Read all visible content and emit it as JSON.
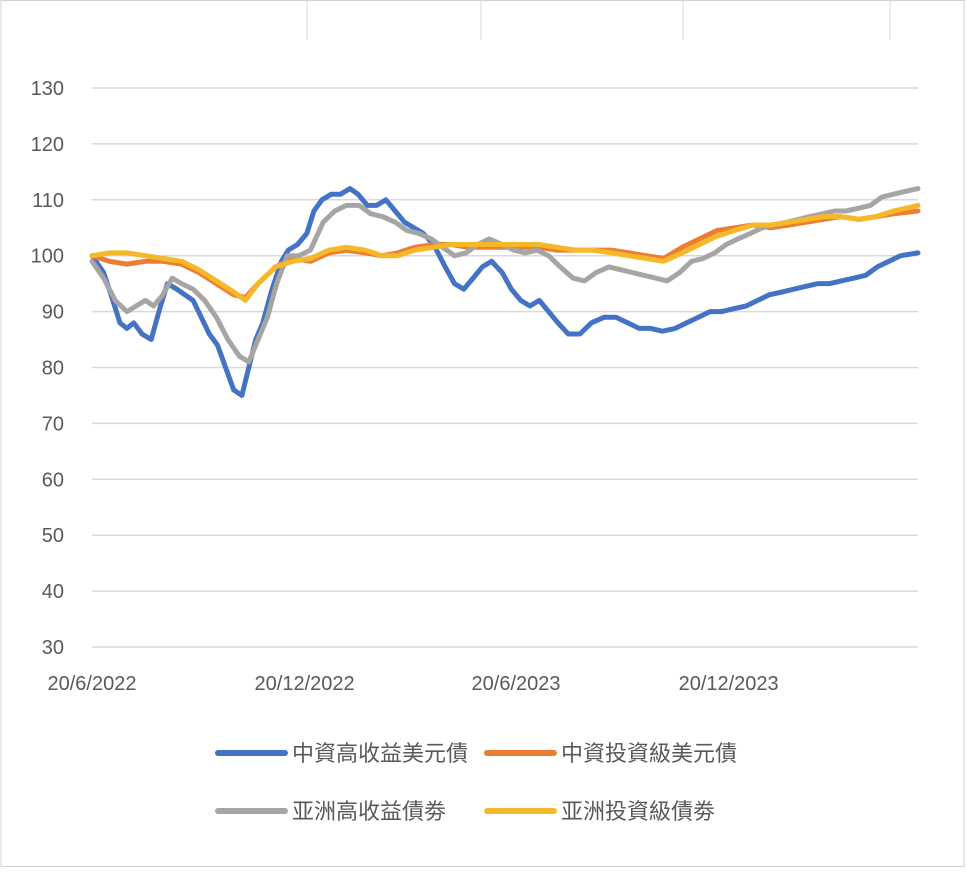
{
  "chart_data": {
    "type": "line",
    "title": "",
    "xlabel": "",
    "ylabel": "",
    "x_ticks": [
      "20/6/2022",
      "20/12/2022",
      "20/6/2023",
      "20/12/2023"
    ],
    "x_range": [
      "2022-06-20",
      "2024-05-31"
    ],
    "y_ticks": [
      130,
      120,
      110,
      100,
      90,
      80,
      70,
      60,
      50,
      40,
      30
    ],
    "ylim": [
      30,
      130
    ],
    "grid": true,
    "legend_position": "bottom",
    "series": [
      {
        "name": "中資高收益美元債",
        "color": "#4472C4",
        "points": [
          [
            "2022-06-20",
            100
          ],
          [
            "2022-06-30",
            97
          ],
          [
            "2022-07-08",
            92
          ],
          [
            "2022-07-14",
            88
          ],
          [
            "2022-07-20",
            87
          ],
          [
            "2022-07-26",
            88
          ],
          [
            "2022-08-02",
            86
          ],
          [
            "2022-08-10",
            85
          ],
          [
            "2022-08-18",
            91
          ],
          [
            "2022-08-24",
            95
          ],
          [
            "2022-09-01",
            94
          ],
          [
            "2022-09-08",
            93
          ],
          [
            "2022-09-15",
            92
          ],
          [
            "2022-09-22",
            89
          ],
          [
            "2022-09-29",
            86
          ],
          [
            "2022-10-06",
            84
          ],
          [
            "2022-10-13",
            80
          ],
          [
            "2022-10-20",
            76
          ],
          [
            "2022-10-27",
            75
          ],
          [
            "2022-11-02",
            80
          ],
          [
            "2022-11-08",
            85
          ],
          [
            "2022-11-14",
            88
          ],
          [
            "2022-11-22",
            94
          ],
          [
            "2022-11-30",
            99
          ],
          [
            "2022-12-06",
            101
          ],
          [
            "2022-12-14",
            102
          ],
          [
            "2022-12-22",
            104
          ],
          [
            "2022-12-28",
            108
          ],
          [
            "2023-01-04",
            110
          ],
          [
            "2023-01-12",
            111
          ],
          [
            "2023-01-20",
            111
          ],
          [
            "2023-01-28",
            112
          ],
          [
            "2023-02-04",
            111
          ],
          [
            "2023-02-12",
            109
          ],
          [
            "2023-02-20",
            109
          ],
          [
            "2023-02-28",
            110
          ],
          [
            "2023-03-08",
            108
          ],
          [
            "2023-03-16",
            106
          ],
          [
            "2023-03-24",
            105
          ],
          [
            "2023-04-01",
            104
          ],
          [
            "2023-04-10",
            102
          ],
          [
            "2023-04-20",
            98
          ],
          [
            "2023-04-28",
            95
          ],
          [
            "2023-05-06",
            94
          ],
          [
            "2023-05-14",
            96
          ],
          [
            "2023-05-22",
            98
          ],
          [
            "2023-05-30",
            99
          ],
          [
            "2023-06-08",
            97
          ],
          [
            "2023-06-16",
            94
          ],
          [
            "2023-06-24",
            92
          ],
          [
            "2023-07-02",
            91
          ],
          [
            "2023-07-10",
            92
          ],
          [
            "2023-07-18",
            90
          ],
          [
            "2023-07-26",
            88
          ],
          [
            "2023-08-04",
            86
          ],
          [
            "2023-08-14",
            86
          ],
          [
            "2023-08-24",
            88
          ],
          [
            "2023-09-04",
            89
          ],
          [
            "2023-09-14",
            89
          ],
          [
            "2023-09-24",
            88
          ],
          [
            "2023-10-04",
            87
          ],
          [
            "2023-10-14",
            87
          ],
          [
            "2023-10-24",
            86.5
          ],
          [
            "2023-11-04",
            87
          ],
          [
            "2023-11-14",
            88
          ],
          [
            "2023-11-24",
            89
          ],
          [
            "2023-12-04",
            90
          ],
          [
            "2023-12-14",
            90
          ],
          [
            "2023-12-24",
            90.5
          ],
          [
            "2024-01-04",
            91
          ],
          [
            "2024-01-14",
            92
          ],
          [
            "2024-01-24",
            93
          ],
          [
            "2024-02-04",
            93.5
          ],
          [
            "2024-02-14",
            94
          ],
          [
            "2024-02-24",
            94.5
          ],
          [
            "2024-03-06",
            95
          ],
          [
            "2024-03-16",
            95
          ],
          [
            "2024-03-26",
            95.5
          ],
          [
            "2024-04-06",
            96
          ],
          [
            "2024-04-16",
            96.5
          ],
          [
            "2024-04-26",
            98
          ],
          [
            "2024-05-06",
            99
          ],
          [
            "2024-05-16",
            100
          ],
          [
            "2024-05-31",
            100.5
          ]
        ]
      },
      {
        "name": "中資投資級美元債",
        "color": "#ED7D31",
        "points": [
          [
            "2022-06-20",
            100
          ],
          [
            "2022-07-05",
            99
          ],
          [
            "2022-07-20",
            98.5
          ],
          [
            "2022-08-05",
            99
          ],
          [
            "2022-08-20",
            99
          ],
          [
            "2022-09-05",
            98.5
          ],
          [
            "2022-09-20",
            97
          ],
          [
            "2022-10-05",
            95
          ],
          [
            "2022-10-20",
            93
          ],
          [
            "2022-10-30",
            92.5
          ],
          [
            "2022-11-10",
            95
          ],
          [
            "2022-11-25",
            98
          ],
          [
            "2022-12-10",
            99.5
          ],
          [
            "2022-12-25",
            99
          ],
          [
            "2023-01-10",
            100.5
          ],
          [
            "2023-01-25",
            101
          ],
          [
            "2023-02-10",
            100.5
          ],
          [
            "2023-02-25",
            100
          ],
          [
            "2023-03-10",
            100.5
          ],
          [
            "2023-03-25",
            101.5
          ],
          [
            "2023-04-10",
            102
          ],
          [
            "2023-04-25",
            102
          ],
          [
            "2023-05-10",
            101.5
          ],
          [
            "2023-05-25",
            101.5
          ],
          [
            "2023-06-10",
            101.5
          ],
          [
            "2023-06-25",
            101.5
          ],
          [
            "2023-07-10",
            101.5
          ],
          [
            "2023-07-25",
            101
          ],
          [
            "2023-08-10",
            101
          ],
          [
            "2023-08-25",
            101
          ],
          [
            "2023-09-10",
            101
          ],
          [
            "2023-09-25",
            100.5
          ],
          [
            "2023-10-10",
            100
          ],
          [
            "2023-10-25",
            99.5
          ],
          [
            "2023-11-10",
            101.5
          ],
          [
            "2023-11-25",
            103
          ],
          [
            "2023-12-10",
            104.5
          ],
          [
            "2023-12-25",
            105
          ],
          [
            "2024-01-10",
            105.5
          ],
          [
            "2024-01-25",
            105
          ],
          [
            "2024-02-10",
            105.5
          ],
          [
            "2024-02-25",
            106
          ],
          [
            "2024-03-10",
            106.5
          ],
          [
            "2024-03-25",
            107
          ],
          [
            "2024-04-10",
            106.5
          ],
          [
            "2024-04-25",
            107
          ],
          [
            "2024-05-10",
            107.5
          ],
          [
            "2024-05-31",
            108
          ]
        ]
      },
      {
        "name": "亚洲高收益債劵",
        "color": "#A5A5A5",
        "points": [
          [
            "2022-06-20",
            99
          ],
          [
            "2022-06-30",
            96
          ],
          [
            "2022-07-10",
            92
          ],
          [
            "2022-07-20",
            90
          ],
          [
            "2022-07-28",
            91
          ],
          [
            "2022-08-05",
            92
          ],
          [
            "2022-08-12",
            91
          ],
          [
            "2022-08-20",
            93
          ],
          [
            "2022-08-28",
            96
          ],
          [
            "2022-09-05",
            95
          ],
          [
            "2022-09-15",
            94
          ],
          [
            "2022-09-25",
            92
          ],
          [
            "2022-10-05",
            89
          ],
          [
            "2022-10-15",
            85
          ],
          [
            "2022-10-25",
            82
          ],
          [
            "2022-11-02",
            81
          ],
          [
            "2022-11-10",
            85
          ],
          [
            "2022-11-18",
            89
          ],
          [
            "2022-11-26",
            95
          ],
          [
            "2022-12-05",
            100
          ],
          [
            "2022-12-15",
            100
          ],
          [
            "2022-12-25",
            101
          ],
          [
            "2023-01-05",
            106
          ],
          [
            "2023-01-15",
            108
          ],
          [
            "2023-01-25",
            109
          ],
          [
            "2023-02-05",
            109
          ],
          [
            "2023-02-15",
            107.5
          ],
          [
            "2023-02-25",
            107
          ],
          [
            "2023-03-08",
            106
          ],
          [
            "2023-03-18",
            104.5
          ],
          [
            "2023-03-28",
            104
          ],
          [
            "2023-04-08",
            103
          ],
          [
            "2023-04-18",
            101.5
          ],
          [
            "2023-04-28",
            100
          ],
          [
            "2023-05-08",
            100.5
          ],
          [
            "2023-05-18",
            102
          ],
          [
            "2023-05-28",
            103
          ],
          [
            "2023-06-08",
            102
          ],
          [
            "2023-06-18",
            101
          ],
          [
            "2023-06-28",
            100.5
          ],
          [
            "2023-07-08",
            101
          ],
          [
            "2023-07-18",
            100
          ],
          [
            "2023-07-28",
            98
          ],
          [
            "2023-08-08",
            96
          ],
          [
            "2023-08-18",
            95.5
          ],
          [
            "2023-08-28",
            97
          ],
          [
            "2023-09-08",
            98
          ],
          [
            "2023-09-18",
            97.5
          ],
          [
            "2023-09-28",
            97
          ],
          [
            "2023-10-08",
            96.5
          ],
          [
            "2023-10-18",
            96
          ],
          [
            "2023-10-28",
            95.5
          ],
          [
            "2023-11-08",
            97
          ],
          [
            "2023-11-18",
            99
          ],
          [
            "2023-11-28",
            99.5
          ],
          [
            "2023-12-08",
            100.5
          ],
          [
            "2023-12-18",
            102
          ],
          [
            "2023-12-28",
            103
          ],
          [
            "2024-01-08",
            104
          ],
          [
            "2024-01-18",
            105
          ],
          [
            "2024-01-28",
            105.5
          ],
          [
            "2024-02-08",
            106
          ],
          [
            "2024-02-18",
            106.5
          ],
          [
            "2024-02-28",
            107
          ],
          [
            "2024-03-10",
            107.5
          ],
          [
            "2024-03-20",
            108
          ],
          [
            "2024-03-30",
            108
          ],
          [
            "2024-04-10",
            108.5
          ],
          [
            "2024-04-20",
            109
          ],
          [
            "2024-04-30",
            110.5
          ],
          [
            "2024-05-10",
            111
          ],
          [
            "2024-05-20",
            111.5
          ],
          [
            "2024-05-31",
            112
          ]
        ]
      },
      {
        "name": "亚洲投資級債劵",
        "color": "#F4B829",
        "points": [
          [
            "2022-06-20",
            100
          ],
          [
            "2022-07-05",
            100.5
          ],
          [
            "2022-07-20",
            100.5
          ],
          [
            "2022-08-05",
            100
          ],
          [
            "2022-08-20",
            99.5
          ],
          [
            "2022-09-05",
            99
          ],
          [
            "2022-09-20",
            97.5
          ],
          [
            "2022-10-05",
            95.5
          ],
          [
            "2022-10-20",
            93.5
          ],
          [
            "2022-10-30",
            92
          ],
          [
            "2022-11-10",
            95
          ],
          [
            "2022-11-25",
            98
          ],
          [
            "2022-12-10",
            99
          ],
          [
            "2022-12-25",
            99.5
          ],
          [
            "2023-01-10",
            101
          ],
          [
            "2023-01-25",
            101.5
          ],
          [
            "2023-02-10",
            101
          ],
          [
            "2023-02-25",
            100
          ],
          [
            "2023-03-10",
            100
          ],
          [
            "2023-03-25",
            101
          ],
          [
            "2023-04-10",
            101.5
          ],
          [
            "2023-04-25",
            102
          ],
          [
            "2023-05-10",
            102
          ],
          [
            "2023-05-25",
            102
          ],
          [
            "2023-06-10",
            102
          ],
          [
            "2023-06-25",
            102
          ],
          [
            "2023-07-10",
            102
          ],
          [
            "2023-07-25",
            101.5
          ],
          [
            "2023-08-10",
            101
          ],
          [
            "2023-08-25",
            101
          ],
          [
            "2023-09-10",
            100.5
          ],
          [
            "2023-09-25",
            100
          ],
          [
            "2023-10-10",
            99.5
          ],
          [
            "2023-10-25",
            99
          ],
          [
            "2023-11-10",
            100.5
          ],
          [
            "2023-11-25",
            102
          ],
          [
            "2023-12-10",
            103.5
          ],
          [
            "2023-12-25",
            104.5
          ],
          [
            "2024-01-10",
            105.5
          ],
          [
            "2024-01-25",
            105.5
          ],
          [
            "2024-02-10",
            106
          ],
          [
            "2024-02-25",
            106.5
          ],
          [
            "2024-03-10",
            107
          ],
          [
            "2024-03-25",
            107
          ],
          [
            "2024-04-10",
            106.5
          ],
          [
            "2024-04-25",
            107
          ],
          [
            "2024-05-10",
            108
          ],
          [
            "2024-05-31",
            109
          ]
        ]
      }
    ]
  }
}
